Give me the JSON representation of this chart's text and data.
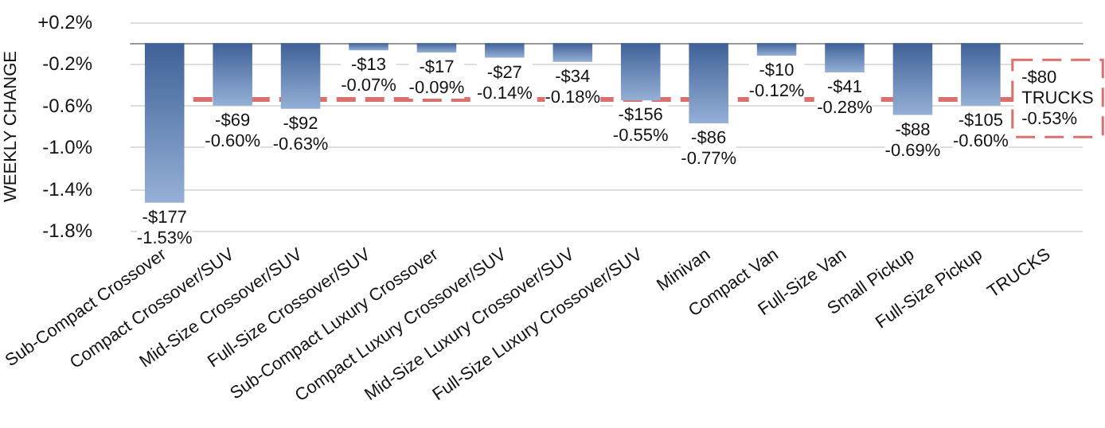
{
  "chart_data": {
    "type": "bar",
    "ylabel": "WEEKLY CHANGE",
    "categories": [
      "Sub-Compact Crossover",
      "Compact Crossover/SUV",
      "Mid-Size Crossover/SUV",
      "Full-Size Crossover/SUV",
      "Sub-Compact Luxury Crossover",
      "Compact Luxury Crossover/SUV",
      "Mid-Size Luxury Crossover/SUV",
      "Full-Size Luxury Crossover/SUV",
      "Minivan",
      "Compact Van",
      "Full-Size Van",
      "Small Pickup",
      "Full-Size Pickup",
      "TRUCKS"
    ],
    "values": [
      -1.53,
      -0.6,
      -0.63,
      -0.07,
      -0.09,
      -0.14,
      -0.18,
      -0.55,
      -0.77,
      -0.12,
      -0.28,
      -0.69,
      -0.6,
      null
    ],
    "value_labels": [
      "-$177\n-1.53%",
      "-$69\n-0.60%",
      "-$92\n-0.63%",
      "-$13\n-0.07%",
      "-$17\n-0.09%",
      "-$27\n-0.14%",
      "-$34\n-0.18%",
      "-$156\n-0.55%",
      "-$86\n-0.77%",
      "-$10\n-0.12%",
      "-$41\n-0.28%",
      "-$88\n-0.69%",
      "-$105\n-0.60%",
      null
    ],
    "color": "#3f6197",
    "ylim": [
      -1.8,
      0.2
    ],
    "yticks": [
      {
        "value": 0.2,
        "label": "+0.2%"
      },
      {
        "value": -0.2,
        "label": "-0.2%"
      },
      {
        "value": -0.6,
        "label": "-0.6%"
      },
      {
        "value": -1.0,
        "label": "-1.0%"
      },
      {
        "value": -1.4,
        "label": "-1.4%"
      },
      {
        "value": -1.8,
        "label": "-1.8%"
      }
    ],
    "grid": "y",
    "ref_lines": [
      {
        "axis": "y",
        "value": -0.53,
        "label": "-$80\nTRUCKS\n-0.53%",
        "color": "#d9706e",
        "line_style": "dashed"
      }
    ]
  }
}
